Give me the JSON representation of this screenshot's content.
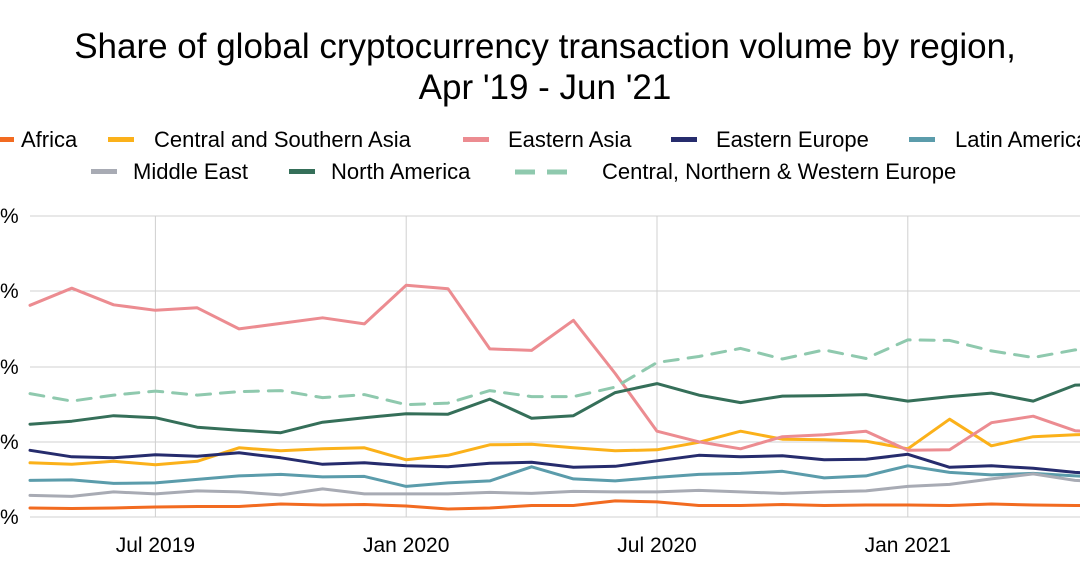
{
  "chart_data": {
    "type": "line",
    "title": "Share of global cryptocurrency transaction volume by region,",
    "subtitle": "Apr '19 - Jun '21",
    "x_ticks": [
      "Jul 2019",
      "Jan 2020",
      "Jul 2020",
      "Jan 2021"
    ],
    "y_ticks": [
      "%",
      "%",
      "%",
      "%",
      "%"
    ],
    "y_range_pct_of_plot": "unlabeled",
    "legend_position": "top",
    "grid": true,
    "months": [
      "Apr 2019",
      "May 2019",
      "Jun 2019",
      "Jul 2019",
      "Aug 2019",
      "Sep 2019",
      "Oct 2019",
      "Nov 2019",
      "Dec 2019",
      "Jan 2020",
      "Feb 2020",
      "Mar 2020",
      "Apr 2020",
      "May 2020",
      "Jun 2020",
      "Jul 2020",
      "Aug 2020",
      "Sep 2020",
      "Oct 2020",
      "Nov 2020",
      "Dec 2020",
      "Jan 2021",
      "Feb 2021",
      "Mar 2021",
      "Apr 2021",
      "May 2021",
      "Jun 2021"
    ],
    "series": [
      {
        "name": "Africa",
        "color": "#f26b21",
        "dash": false,
        "values": [
          1.8,
          1.7,
          1.8,
          2.0,
          2.1,
          2.1,
          2.6,
          2.4,
          2.5,
          2.2,
          1.6,
          1.8,
          2.3,
          2.3,
          3.2,
          3.0,
          2.3,
          2.3,
          2.5,
          2.3,
          2.4,
          2.4,
          2.3,
          2.6,
          2.4,
          2.3,
          2.3
        ]
      },
      {
        "name": "Central and Southern Asia",
        "color": "#fbb11a",
        "dash": false,
        "values": [
          10.8,
          10.5,
          11.1,
          10.4,
          11.1,
          13.8,
          13.2,
          13.6,
          13.8,
          11.4,
          12.3,
          14.4,
          14.5,
          13.8,
          13.2,
          13.4,
          14.9,
          17.1,
          15.5,
          15.4,
          15.1,
          13.6,
          19.5,
          14.2,
          16.0,
          16.4,
          16.6
        ]
      },
      {
        "name": "Eastern Asia",
        "color": "#ec8c91",
        "dash": false,
        "values": [
          42.2,
          45.6,
          42.3,
          41.2,
          41.7,
          37.5,
          38.6,
          39.7,
          38.5,
          46.2,
          45.5,
          33.5,
          33.2,
          39.2,
          28.6,
          17.1,
          15.0,
          13.6,
          16.0,
          16.4,
          17.1,
          13.3,
          13.4,
          18.8,
          20.1,
          17.2,
          16.8
        ]
      },
      {
        "name": "Eastern Europe",
        "color": "#262c6d",
        "dash": false,
        "values": [
          13.3,
          12.0,
          11.8,
          12.4,
          12.1,
          12.8,
          11.8,
          10.5,
          10.8,
          10.2,
          10.0,
          10.7,
          10.9,
          9.9,
          10.1,
          11.2,
          12.3,
          12.0,
          12.2,
          11.4,
          11.5,
          12.5,
          9.9,
          10.2,
          9.7,
          8.9,
          8.5
        ]
      },
      {
        "name": "Latin America",
        "color": "#5b9cab",
        "dash": false,
        "values": [
          7.3,
          7.4,
          6.7,
          6.8,
          7.5,
          8.2,
          8.5,
          8.0,
          8.1,
          6.1,
          6.8,
          7.2,
          10.0,
          7.6,
          7.2,
          7.9,
          8.5,
          8.7,
          9.1,
          7.8,
          8.2,
          10.2,
          8.9,
          8.4,
          8.7,
          8.2,
          7.8
        ]
      },
      {
        "name": "Middle East",
        "color": "#a8abb4",
        "dash": false,
        "values": [
          4.3,
          4.1,
          5.0,
          4.6,
          5.2,
          5.0,
          4.4,
          5.6,
          4.6,
          4.6,
          4.6,
          4.9,
          4.7,
          5.1,
          5.0,
          5.0,
          5.3,
          5.0,
          4.7,
          5.0,
          5.2,
          6.1,
          6.5,
          7.6,
          8.6,
          7.3,
          7.0
        ]
      },
      {
        "name": "North America",
        "color": "#356f59",
        "dash": false,
        "values": [
          18.5,
          19.1,
          20.2,
          19.8,
          17.9,
          17.3,
          16.8,
          18.9,
          19.8,
          20.6,
          20.5,
          23.5,
          19.7,
          20.2,
          24.8,
          26.6,
          24.3,
          22.8,
          24.1,
          24.2,
          24.4,
          23.1,
          24.0,
          24.7,
          23.1,
          26.3,
          26.4
        ]
      },
      {
        "name": "Central, Northern & Western Europe",
        "color": "#8fc9ae",
        "dash": true,
        "values": [
          24.6,
          23.1,
          24.3,
          25.1,
          24.3,
          25.0,
          25.2,
          23.8,
          24.4,
          22.4,
          22.7,
          25.2,
          24.0,
          24.0,
          25.9,
          30.8,
          32.0,
          33.6,
          31.5,
          33.3,
          31.6,
          35.3,
          35.2,
          33.1,
          31.8,
          33.3,
          34.2
        ]
      }
    ]
  }
}
